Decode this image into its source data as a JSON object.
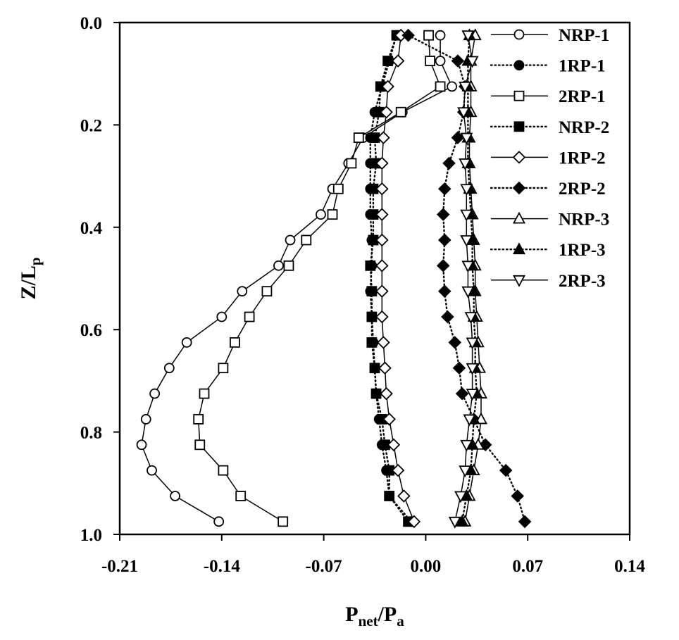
{
  "chart_data": {
    "type": "line",
    "xlabel": {
      "main": "P",
      "sub1": "net",
      "sep": "/P",
      "sub2": "a"
    },
    "ylabel": {
      "main": "Z/L",
      "sub": "p"
    },
    "xlim": [
      -0.21,
      0.14
    ],
    "ylim": [
      0.0,
      1.0
    ],
    "y_inverted": true,
    "x_ticks": [
      -0.21,
      -0.14,
      -0.07,
      0.0,
      0.07,
      0.14
    ],
    "x_tick_labels": [
      "-0.21",
      "-0.14",
      "-0.07",
      "0.00",
      "0.07",
      "0.14"
    ],
    "y_ticks": [
      0.0,
      0.2,
      0.4,
      0.6,
      0.8,
      1.0
    ],
    "y_tick_labels": [
      "0.0",
      "0.2",
      "0.4",
      "0.6",
      "0.8",
      "1.0"
    ],
    "grid": false,
    "legend_position": "top-right",
    "z": [
      0.025,
      0.075,
      0.125,
      0.175,
      0.225,
      0.275,
      0.325,
      0.375,
      0.425,
      0.475,
      0.525,
      0.575,
      0.625,
      0.675,
      0.725,
      0.775,
      0.825,
      0.875,
      0.925,
      0.975
    ],
    "series": [
      {
        "name": "NRP-1",
        "marker": "circle",
        "fill": "open",
        "line": "solid",
        "x": [
          0.01,
          0.01,
          0.018,
          -0.016,
          -0.043,
          -0.053,
          -0.064,
          -0.072,
          -0.093,
          -0.101,
          -0.126,
          -0.14,
          -0.164,
          -0.176,
          -0.186,
          -0.192,
          -0.195,
          -0.188,
          -0.172,
          -0.142
        ]
      },
      {
        "name": "1RP-1",
        "marker": "circle",
        "fill": "filled",
        "line": "dotted",
        "x": [
          -0.02,
          -0.025,
          -0.03,
          -0.035,
          -0.038,
          -0.038,
          -0.038,
          -0.038,
          -0.037,
          -0.037,
          -0.038,
          -0.037,
          -0.036,
          -0.035,
          -0.034,
          -0.032,
          -0.03,
          -0.027,
          -0.025,
          -0.01
        ]
      },
      {
        "name": "2RP-1",
        "marker": "square",
        "fill": "open",
        "line": "solid",
        "x": [
          0.002,
          0.003,
          0.01,
          -0.017,
          -0.046,
          -0.051,
          -0.06,
          -0.064,
          -0.082,
          -0.094,
          -0.109,
          -0.121,
          -0.131,
          -0.139,
          -0.152,
          -0.156,
          -0.155,
          -0.139,
          -0.127,
          -0.098
        ]
      },
      {
        "name": "NRP-2",
        "marker": "square",
        "fill": "filled",
        "line": "dotted",
        "x": [
          -0.02,
          -0.026,
          -0.031,
          -0.032,
          -0.035,
          -0.034,
          -0.036,
          -0.036,
          -0.036,
          -0.038,
          -0.037,
          -0.037,
          -0.037,
          -0.035,
          -0.034,
          -0.03,
          -0.028,
          -0.025,
          -0.025,
          -0.012
        ]
      },
      {
        "name": "1RP-2",
        "marker": "diamond",
        "fill": "open",
        "line": "solid",
        "x": [
          -0.017,
          -0.019,
          -0.026,
          -0.027,
          -0.029,
          -0.03,
          -0.03,
          -0.03,
          -0.03,
          -0.03,
          -0.03,
          -0.03,
          -0.029,
          -0.028,
          -0.027,
          -0.025,
          -0.022,
          -0.019,
          -0.015,
          -0.008
        ]
      },
      {
        "name": "2RP-2",
        "marker": "diamond",
        "fill": "filled",
        "line": "dotted",
        "x": [
          -0.012,
          0.022,
          0.027,
          0.026,
          0.022,
          0.016,
          0.013,
          0.012,
          0.013,
          0.012,
          0.013,
          0.015,
          0.02,
          0.023,
          0.025,
          0.033,
          0.041,
          0.055,
          0.063,
          0.068
        ]
      },
      {
        "name": "NRP-3",
        "marker": "triangle-up",
        "fill": "open",
        "line": "solid",
        "x": [
          0.034,
          0.031,
          0.031,
          0.031,
          0.03,
          0.03,
          0.031,
          0.032,
          0.033,
          0.034,
          0.034,
          0.035,
          0.036,
          0.037,
          0.038,
          0.038,
          0.036,
          0.033,
          0.03,
          0.027
        ]
      },
      {
        "name": "1RP-3",
        "marker": "triangle-up",
        "fill": "filled",
        "line": "dotted",
        "x": [
          0.03,
          0.029,
          0.029,
          0.029,
          0.029,
          0.029,
          0.03,
          0.031,
          0.032,
          0.032,
          0.033,
          0.033,
          0.034,
          0.034,
          0.035,
          0.033,
          0.032,
          0.031,
          0.028,
          0.025
        ]
      },
      {
        "name": "2RP-3",
        "marker": "triangle-down",
        "fill": "open",
        "line": "solid",
        "x": [
          0.029,
          0.032,
          0.027,
          0.026,
          0.028,
          0.027,
          0.028,
          0.028,
          0.028,
          0.029,
          0.029,
          0.031,
          0.032,
          0.032,
          0.032,
          0.03,
          0.028,
          0.027,
          0.024,
          0.02
        ]
      }
    ]
  }
}
